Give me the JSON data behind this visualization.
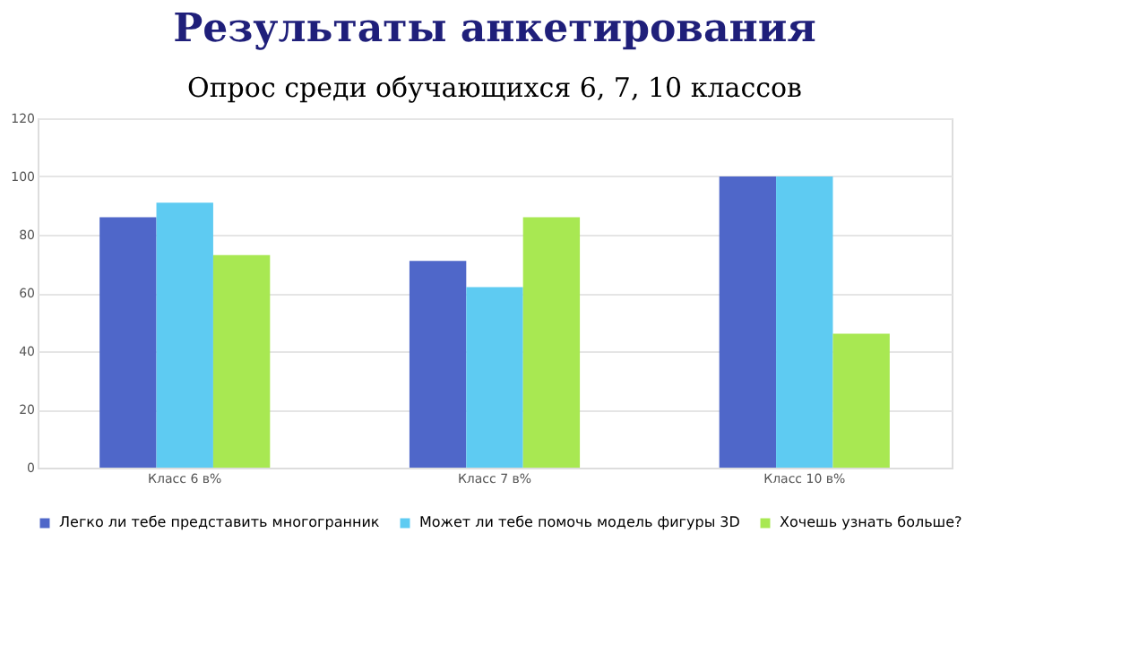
{
  "chart_data": {
    "type": "bar",
    "title": "Результаты анкетирования",
    "subtitle": "Опрос среди  обучающихся 6, 7, 10 классов",
    "categories": [
      "Класс 6 в%",
      "Класс 7 в%",
      "Класс 10 в%"
    ],
    "series": [
      {
        "name": "Легко ли тебе представить многогранник",
        "color": "#4f67c9",
        "values": [
          86,
          71,
          100
        ]
      },
      {
        "name": "Может ли тебе помочь модель фигуры 3D",
        "color": "#5ecbf2",
        "values": [
          91,
          62,
          100
        ]
      },
      {
        "name": "Хочешь узнать больше?",
        "color": "#a8e852",
        "values": [
          73,
          86,
          46
        ]
      }
    ],
    "ylim": [
      0,
      120
    ],
    "yticks": [
      0,
      20,
      40,
      60,
      80,
      100,
      120
    ],
    "grid": "y",
    "legend": "bottom"
  }
}
